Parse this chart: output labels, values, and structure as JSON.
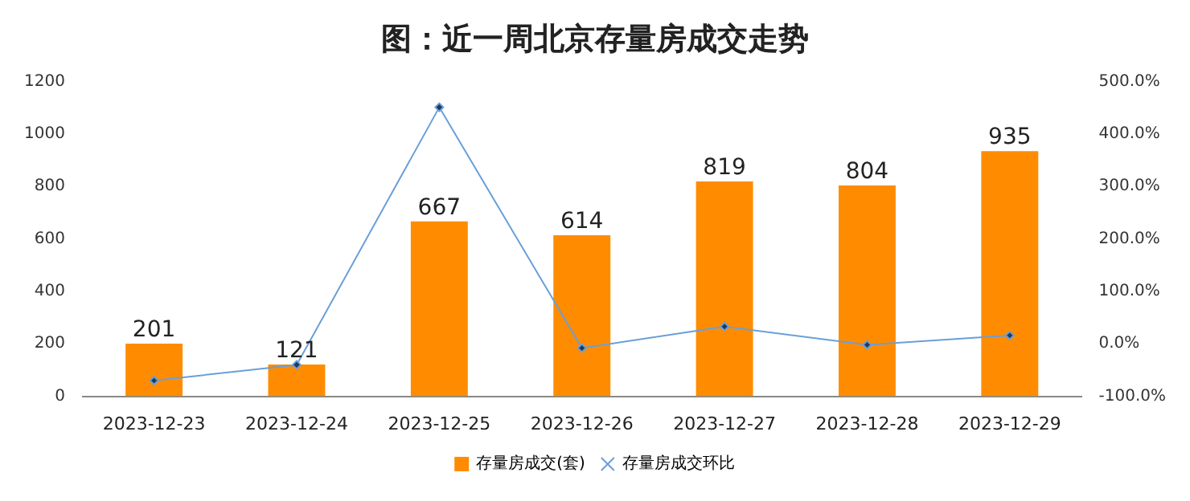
{
  "chart_data": {
    "type": "bar",
    "title": "图：近一周北京存量房成交走势",
    "categories": [
      "2023-12-23",
      "2023-12-24",
      "2023-12-25",
      "2023-12-26",
      "2023-12-27",
      "2023-12-28",
      "2023-12-29"
    ],
    "series": [
      {
        "name": "存量房成交(套)",
        "color": "#ff8c00",
        "values": [
          201,
          121,
          667,
          614,
          819,
          804,
          935
        ],
        "value_labels": [
          "201",
          "121",
          "667",
          "614",
          "819",
          "804",
          "935"
        ]
      },
      {
        "name": "存量房成交环比",
        "type": "line",
        "axis": "y2",
        "color": "#6a9fd8",
        "values": [
          -70,
          -40,
          451,
          -8,
          33,
          -2,
          16
        ]
      }
    ],
    "ylim": [
      0,
      1200
    ],
    "yticks": [
      0,
      200,
      400,
      600,
      800,
      1000,
      1200
    ],
    "y2lim": [
      -100,
      500
    ],
    "y2ticks": [
      {
        "value": -100,
        "label": "-100.0%"
      },
      {
        "value": 0,
        "label": "0.0%"
      },
      {
        "value": 100,
        "label": "100.0%"
      },
      {
        "value": 200,
        "label": "200.0%"
      },
      {
        "value": 300,
        "label": "300.0%"
      },
      {
        "value": 400,
        "label": "400.0%"
      },
      {
        "value": 500,
        "label": "500.0%"
      }
    ],
    "grid": false,
    "legend": "bottom",
    "marker": "diamond",
    "line_style": "solid"
  }
}
